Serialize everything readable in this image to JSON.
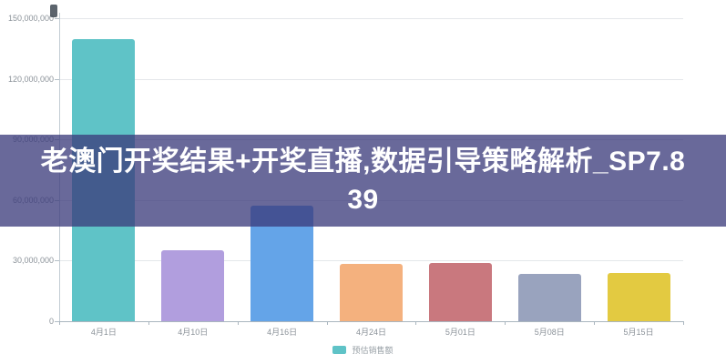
{
  "banner": {
    "title": "老澳门开奖结果+开奖直播,数据引导策略解析_SP7.839",
    "line1": "老澳门开奖结果+开奖直播,数据引导策略解析_SP7.8",
    "line2": "39",
    "background_color": "#3a3a7a",
    "text_color": "#ffffff"
  },
  "chart_data": {
    "type": "bar",
    "title": "",
    "xlabel": "",
    "ylabel": "",
    "categories": [
      "4月1日",
      "4月10日",
      "4月16日",
      "4月24日",
      "5月01日",
      "5月08日",
      "5月15日"
    ],
    "values": [
      139500000,
      35000000,
      57000000,
      28500000,
      29000000,
      23500000,
      24000000
    ],
    "bar_colors": [
      "#5fc3c7",
      "#b19ede",
      "#64a4e8",
      "#f4b17e",
      "#c9787e",
      "#99a3be",
      "#e3ca41"
    ],
    "ylim": [
      0,
      150000000
    ],
    "ytick_step": 30000000,
    "ytick_labels": [
      "150,000,000",
      "120,000,000",
      "90,000,000",
      "60,000,000",
      "30,000,000",
      "0"
    ],
    "grid": true,
    "legend": {
      "label": "预估销售额",
      "swatch_color": "#5fc3c7",
      "position": "bottom-center"
    }
  }
}
